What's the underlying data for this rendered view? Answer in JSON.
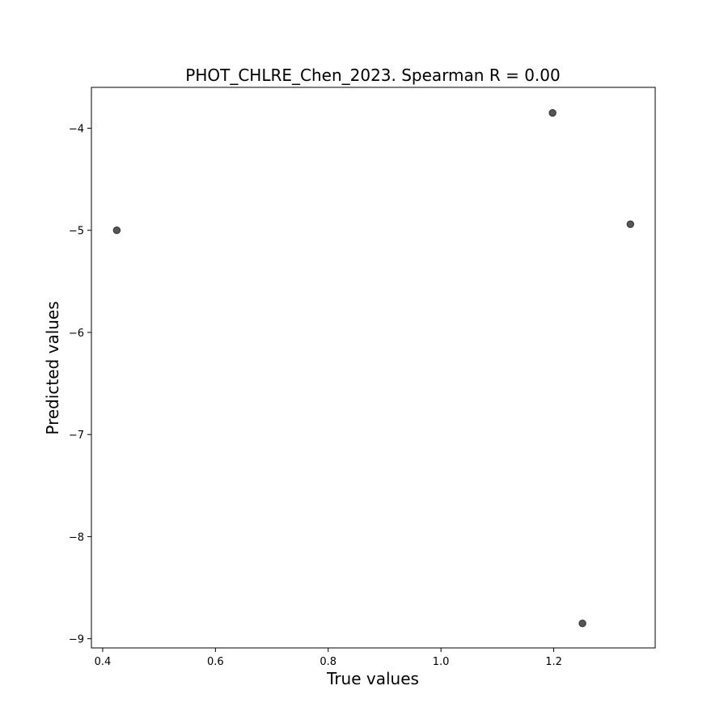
{
  "chart_data": {
    "type": "scatter",
    "title": "PHOT_CHLRE_Chen_2023. Spearman R = 0.00",
    "xlabel": "True values",
    "ylabel": "Predicted values",
    "xlim": [
      0.38,
      1.38
    ],
    "ylim": [
      -9.09,
      -3.6
    ],
    "xticks": [
      0.4,
      0.6,
      0.8,
      1.0,
      1.2
    ],
    "xtick_labels": [
      "0.4",
      "0.6",
      "0.8",
      "1.0",
      "1.2"
    ],
    "yticks": [
      -4,
      -5,
      -6,
      -7,
      -8,
      -9
    ],
    "ytick_labels": [
      "−4",
      "−5",
      "−6",
      "−7",
      "−8",
      "−9"
    ],
    "grid": false,
    "points": [
      {
        "x": 0.425,
        "y": -5.0
      },
      {
        "x": 1.198,
        "y": -3.85
      },
      {
        "x": 1.336,
        "y": -4.94
      },
      {
        "x": 1.251,
        "y": -8.85
      }
    ],
    "marker_color": "#555555",
    "marker_edge_color": "#333333"
  }
}
